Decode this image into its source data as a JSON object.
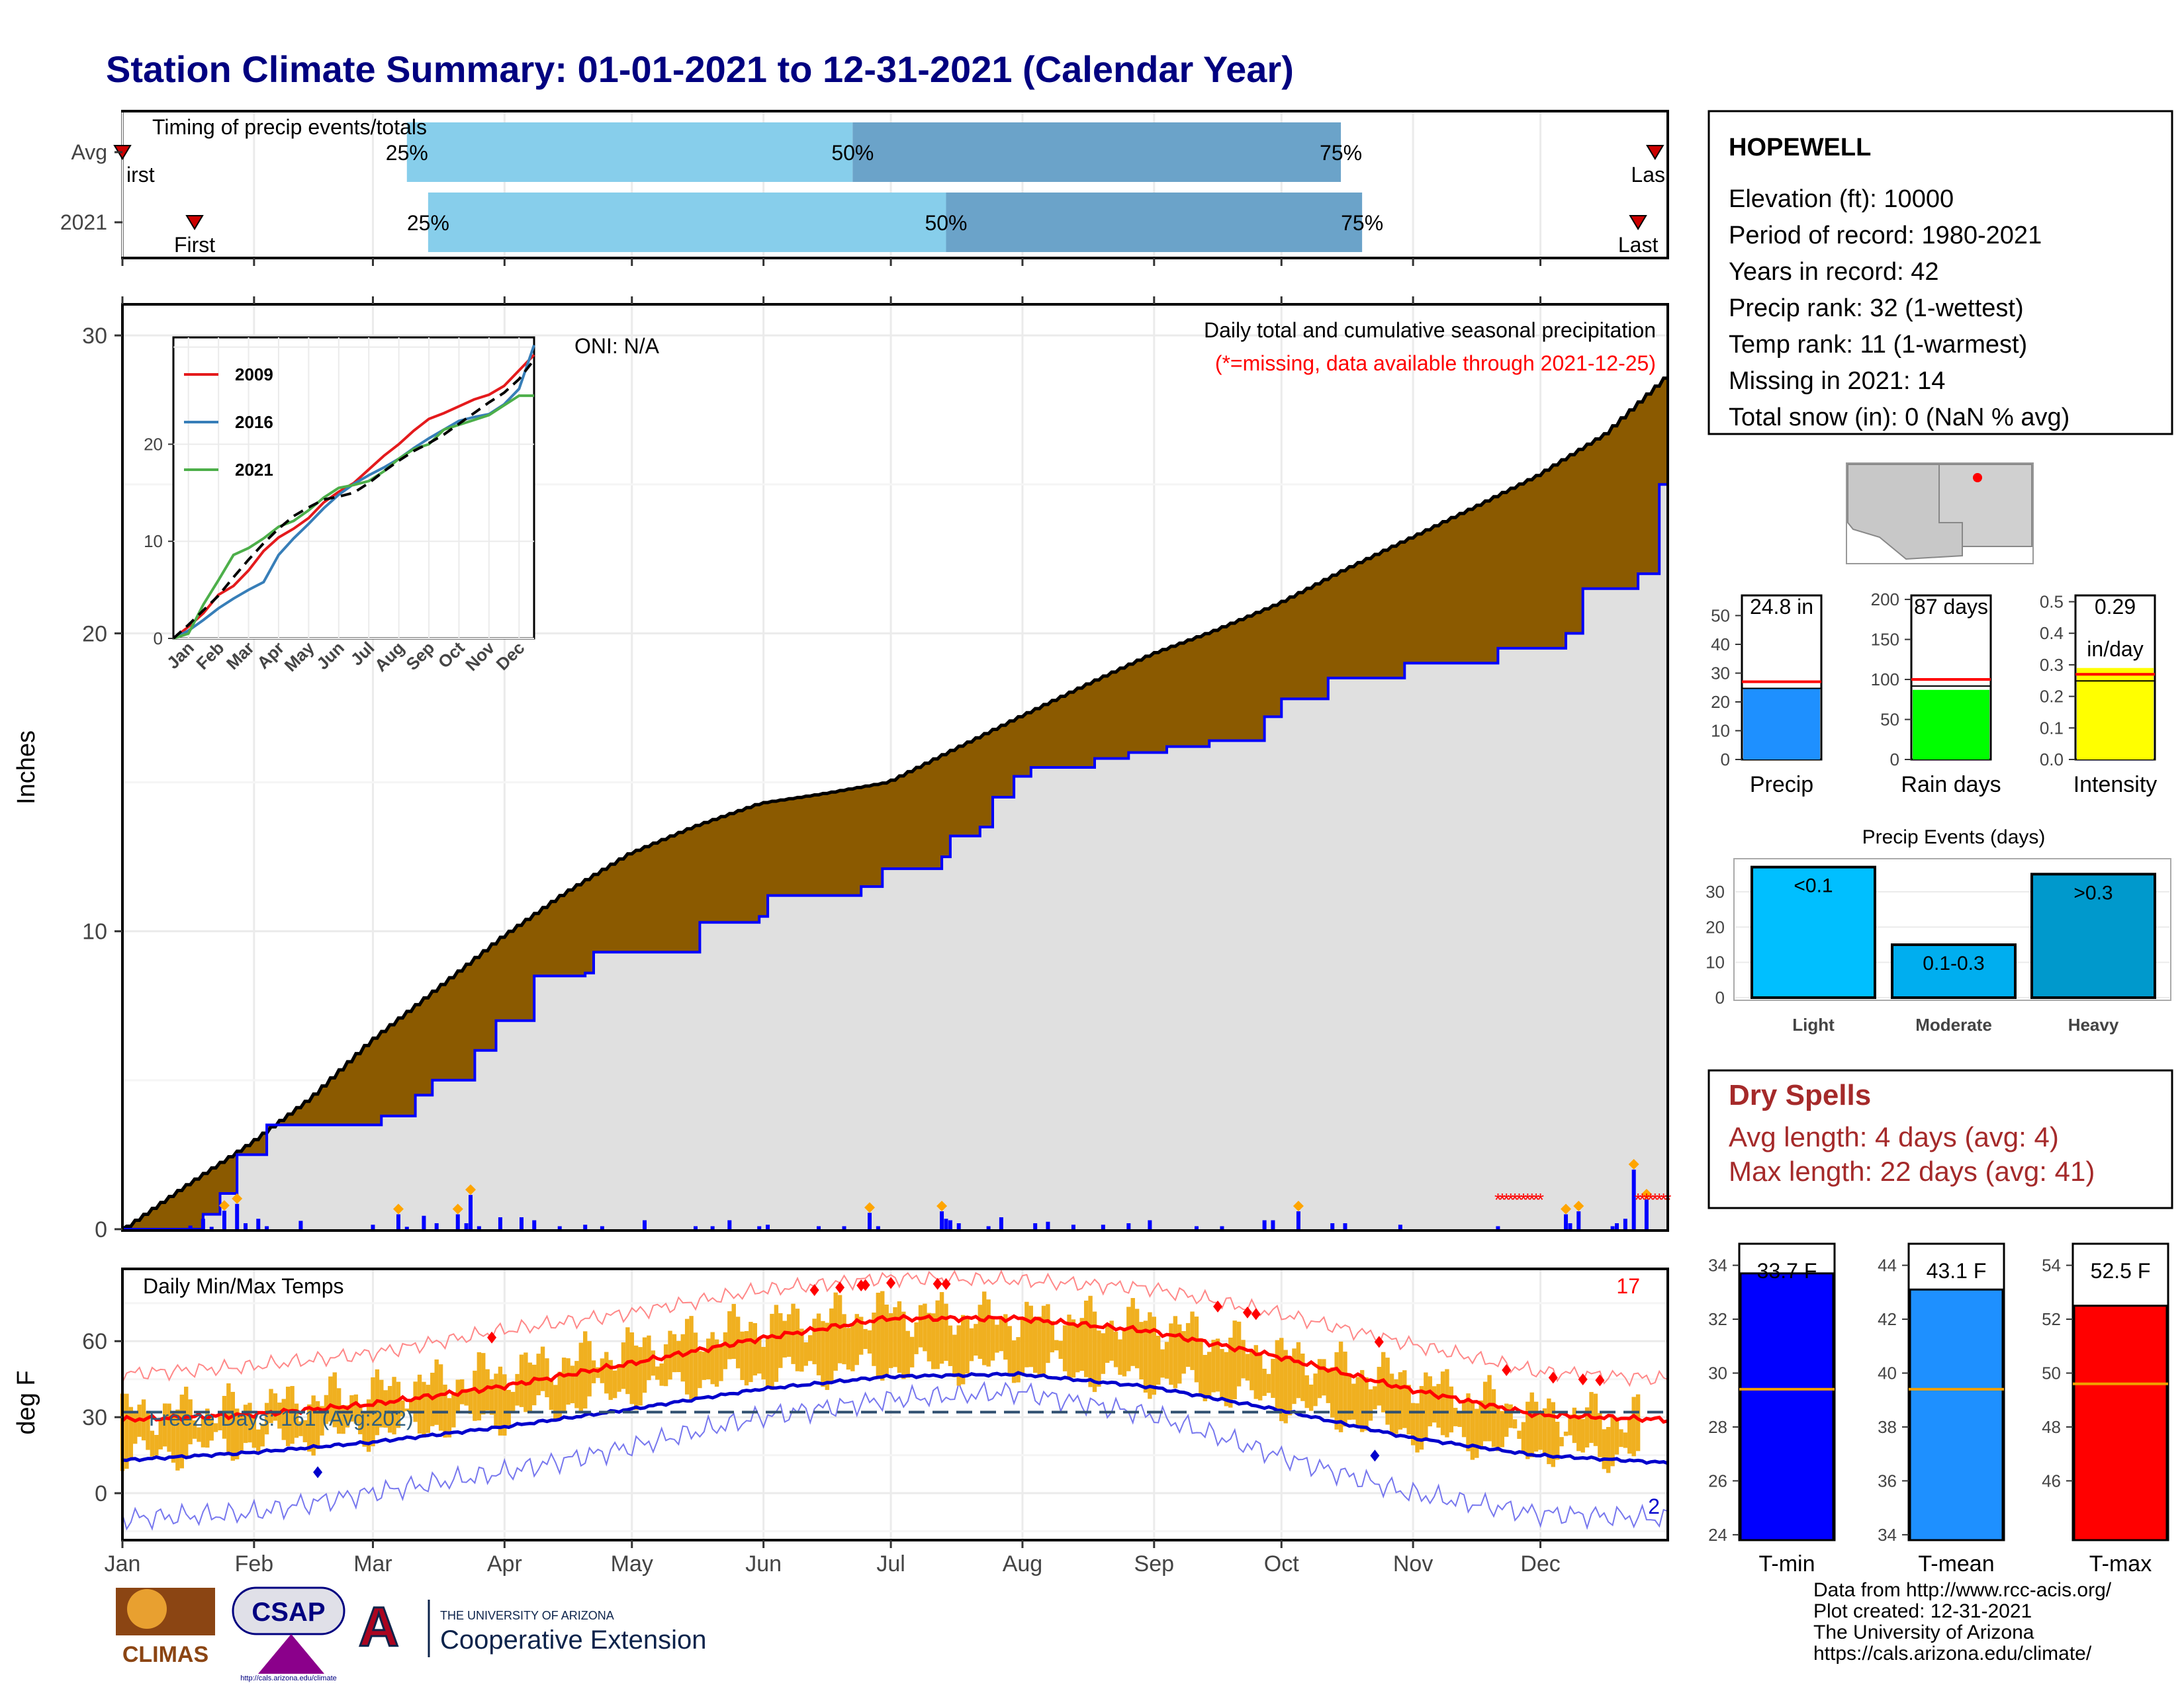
{
  "title": "Station Climate Summary: 01-01-2021 to 12-31-2021 (Calendar Year)",
  "colors": {
    "light_blue": "#87CEEB",
    "mid_blue": "#6BA3C9",
    "accum_fill": "#8B5A00",
    "precip_bar": "#0000FF",
    "cum_fill": "#E0E0E0",
    "tmax": "#FF0000",
    "tmin": "#0000CC",
    "range_bar": "#F0B020",
    "precip_box": "#1E90FF",
    "raindays_box": "#00FF00",
    "intensity_box": "#FFFF00",
    "light_events": "#00BFFF",
    "moderate_events": "#00AEEF",
    "heavy_events": "#0099CC",
    "tmin_box": "#0000FF",
    "tmean_box": "#1E90FF",
    "tmax_box": "#FF0000",
    "avg_line": "#F0A000",
    "dry_spell_text": "#A52A2A",
    "title": "#000080"
  },
  "chart_data": [
    {
      "type": "bar",
      "panel": "timing",
      "title": "Timing of precip events/totals",
      "categories": [
        "Avg",
        "2021"
      ],
      "x_months": [
        "Jan",
        "Feb",
        "Mar",
        "Apr",
        "May",
        "Jun",
        "Jul",
        "Aug",
        "Sep",
        "Oct",
        "Nov",
        "Dec"
      ],
      "quantiles": {
        "Avg": {
          "first": 1,
          "p25": 68,
          "p50": 173,
          "p75": 288,
          "last": 362
        },
        "2021": {
          "first": 18,
          "p25": 73,
          "p50": 195,
          "p75": 293,
          "last": 358
        }
      },
      "labels": {
        "p25": "25%",
        "p50": "50%",
        "p75": "75%",
        "first": "First",
        "last": "Last",
        "first_clipped": "irst",
        "last_clipped": "Las"
      }
    },
    {
      "type": "area",
      "panel": "precipitation",
      "title": "Daily total and cumulative seasonal precipitation",
      "subtitle": "(*=missing, data available through 2021-12-25)",
      "oni": "ONI: N/A",
      "ylabel": "Inches",
      "ylim": [
        0,
        31
      ],
      "yticks": [
        "0",
        "10",
        "20",
        "30"
      ],
      "avg_cumulative": {
        "day": [
          1,
          15,
          31,
          45,
          59,
          75,
          90,
          105,
          120,
          135,
          151,
          165,
          181,
          195,
          212,
          228,
          243,
          258,
          273,
          288,
          304,
          320,
          334,
          350,
          365
        ],
        "inches": [
          0,
          1.4,
          2.9,
          4.4,
          6.3,
          8.1,
          9.8,
          11.3,
          12.6,
          13.5,
          14.3,
          14.6,
          15.0,
          16.0,
          17.2,
          18.3,
          19.3,
          20.1,
          21.0,
          22.1,
          23.2,
          24.3,
          25.3,
          26.7,
          28.7
        ]
      },
      "cumulative_2021": {
        "day": [
          1,
          20,
          24,
          28,
          35,
          56,
          62,
          70,
          74,
          84,
          89,
          98,
          110,
          112,
          137,
          151,
          153,
          175,
          180,
          194,
          196,
          203,
          206,
          211,
          215,
          230,
          238,
          247,
          257,
          270,
          274,
          285,
          303,
          325,
          341,
          345,
          358,
          363,
          365
        ],
        "inches": [
          0,
          0.5,
          1.2,
          2.5,
          3.5,
          3.5,
          3.8,
          4.5,
          5.0,
          6.0,
          7.0,
          8.5,
          8.6,
          9.3,
          10.3,
          10.5,
          11.2,
          11.5,
          12.1,
          12.5,
          13.2,
          13.5,
          14.5,
          15.2,
          15.5,
          15.8,
          16.0,
          16.2,
          16.4,
          17.2,
          17.8,
          18.5,
          19.0,
          19.5,
          20.0,
          21.5,
          22.0,
          25.0,
          25.0
        ]
      },
      "daily_precip": {
        "day": [
          17,
          20,
          22,
          25,
          28,
          30,
          33,
          35,
          43,
          60,
          66,
          68,
          72,
          75,
          80,
          82,
          83,
          85,
          90,
          95,
          98,
          104,
          110,
          114,
          124,
          136,
          140,
          144,
          151,
          153,
          165,
          171,
          177,
          179,
          194,
          195,
          196,
          198,
          205,
          208,
          216,
          219,
          225,
          232,
          238,
          243,
          254,
          260,
          270,
          272,
          278,
          286,
          289,
          302,
          325,
          341,
          342,
          344,
          352,
          353,
          355,
          357,
          360
        ],
        "inches": [
          0.12,
          0.35,
          0.08,
          0.62,
          0.85,
          0.2,
          0.35,
          0.1,
          0.28,
          0.15,
          0.5,
          0.08,
          0.45,
          0.2,
          0.5,
          0.2,
          1.15,
          0.1,
          0.4,
          0.4,
          0.3,
          0.1,
          0.15,
          0.1,
          0.3,
          0.1,
          0.1,
          0.3,
          0.1,
          0.15,
          0.1,
          0.1,
          0.55,
          0.1,
          0.6,
          0.35,
          0.3,
          0.2,
          0.1,
          0.4,
          0.2,
          0.25,
          0.15,
          0.15,
          0.2,
          0.3,
          0.1,
          0.1,
          0.3,
          0.3,
          0.6,
          0.2,
          0.2,
          0.15,
          0.1,
          0.5,
          0.2,
          0.6,
          0.1,
          0.2,
          0.35,
          2.0,
          1.0
        ]
      },
      "missing_days_range": [
        325,
        335
      ],
      "inset": {
        "type": "line",
        "xticks": [
          "Jan",
          "Feb",
          "Mar",
          "Apr",
          "May",
          "Jun",
          "Jul",
          "Aug",
          "Sep",
          "Oct",
          "Nov",
          "Dec"
        ],
        "ylim": [
          0,
          31
        ],
        "yticks": [
          "0",
          "10",
          "20"
        ],
        "series": [
          {
            "name": "2009",
            "color": "#E41A1C",
            "values": [
              0,
              1.2,
              2.6,
              4.5,
              5.4,
              7.0,
              9.0,
              10.4,
              11.3,
              12.4,
              14.0,
              15.1,
              16.0,
              17.4,
              18.8,
              20.0,
              21.4,
              22.6,
              23.2,
              23.9,
              24.6,
              25.1,
              26.0,
              27.6,
              29.2
            ]
          },
          {
            "name": "2016",
            "color": "#377EB8",
            "values": [
              0,
              0.8,
              1.9,
              3.1,
              4.1,
              5.0,
              5.8,
              8.6,
              10.3,
              11.8,
              13.4,
              14.8,
              15.9,
              16.8,
              17.6,
              18.5,
              19.6,
              20.6,
              21.5,
              22.4,
              22.8,
              23.1,
              24.1,
              25.7,
              30.2
            ]
          },
          {
            "name": "2021",
            "color": "#4DAF4A",
            "values": [
              0,
              0.5,
              3.5,
              6.0,
              8.6,
              9.3,
              10.3,
              11.5,
              12.1,
              13.2,
              14.5,
              15.5,
              15.8,
              16.2,
              17.2,
              18.5,
              19.5,
              20.0,
              21.5,
              22.0,
              22.5,
              23.0,
              24.0,
              25.0,
              25.0
            ]
          }
        ],
        "avg_series": {
          "values": [
            0,
            1.4,
            2.9,
            4.4,
            6.3,
            8.1,
            9.8,
            11.3,
            12.6,
            13.5,
            14.3,
            14.6,
            15.0,
            16.0,
            17.2,
            18.3,
            19.3,
            20.1,
            21.0,
            22.1,
            23.2,
            24.3,
            25.3,
            26.7,
            28.7
          ]
        }
      }
    },
    {
      "type": "line",
      "panel": "temperature",
      "title": "Daily Min/Max Temps",
      "ylabel": "deg F",
      "ylim": [
        -18,
        88
      ],
      "yticks": [
        "0",
        "30",
        "60"
      ],
      "freeze_line": 32,
      "freeze_label": "Freeze Days: 161 (Avg:202)",
      "record_highs_count": "17",
      "record_lows_count": "2",
      "x": [
        1,
        31,
        59,
        90,
        120,
        151,
        181,
        212,
        243,
        273,
        304,
        334,
        365
      ],
      "xticks": [
        "Jan",
        "Feb",
        "Mar",
        "Apr",
        "May",
        "Jun",
        "Jul",
        "Aug",
        "Sep",
        "Oct",
        "Nov",
        "Dec"
      ],
      "series": [
        {
          "role": "avg_max",
          "values": [
            29,
            31,
            35,
            42,
            51,
            61,
            69,
            69,
            64,
            54,
            41,
            31,
            29
          ]
        },
        {
          "role": "avg_min",
          "values": [
            13,
            16,
            20,
            26,
            33,
            41,
            46,
            47,
            42,
            33,
            22,
            15,
            12
          ]
        },
        {
          "role": "record_max",
          "values": [
            47,
            50,
            55,
            64,
            71,
            80,
            85,
            84,
            81,
            71,
            59,
            48,
            45
          ]
        },
        {
          "role": "record_min",
          "values": [
            -10,
            -8,
            0,
            8,
            18,
            30,
            37,
            40,
            31,
            15,
            0,
            -8,
            -10
          ]
        },
        {
          "role": "obs_max",
          "values": [
            32,
            34,
            40,
            48,
            57,
            67,
            72,
            69,
            68,
            55,
            45,
            32,
            30
          ]
        },
        {
          "role": "obs_min",
          "values": [
            14,
            20,
            24,
            30,
            40,
            47,
            50,
            50,
            45,
            36,
            24,
            17,
            15
          ]
        }
      ]
    },
    {
      "type": "bar",
      "panel": "summary_boxes",
      "items": [
        {
          "label": "Precip",
          "value": 24.8,
          "avg": 27,
          "value_text": "24.8 in",
          "ylim": [
            0,
            57
          ],
          "yticks": [
            "0",
            "10",
            "20",
            "30",
            "40",
            "50"
          ]
        },
        {
          "label": "Rain days",
          "value": 87,
          "avg": 100,
          "value_text": "87 days",
          "ylim": [
            0,
            205
          ],
          "yticks": [
            "0",
            "50",
            "100",
            "150",
            "200"
          ]
        },
        {
          "label": "Intensity",
          "value": 0.29,
          "avg": 0.27,
          "value_text": "0.29",
          "value_text2": "in/day",
          "ylim": [
            0,
            0.52
          ],
          "yticks": [
            "0.0",
            "0.1",
            "0.2",
            "0.3",
            "0.4",
            "0.5"
          ]
        }
      ]
    },
    {
      "type": "bar",
      "panel": "precip_events",
      "title": "Precip Events (days)",
      "categories": [
        "Light",
        "Moderate",
        "Heavy"
      ],
      "bar_labels": [
        "<0.1",
        "0.1-0.3",
        ">0.3"
      ],
      "values": [
        37,
        15,
        35
      ],
      "ylim": [
        0,
        39
      ],
      "yticks": [
        "0",
        "10",
        "20",
        "30"
      ]
    },
    {
      "type": "bar",
      "panel": "temp_boxes",
      "items": [
        {
          "label": "T-min",
          "value": 33.7,
          "avg": 29.4,
          "value_text": "33.7 F",
          "ylim": [
            23.8,
            34.8
          ],
          "yticks": [
            "24",
            "26",
            "28",
            "30",
            "32",
            "34"
          ]
        },
        {
          "label": "T-mean",
          "value": 43.1,
          "avg": 39.4,
          "value_text": "43.1 F",
          "ylim": [
            33.8,
            44.8
          ],
          "yticks": [
            "34",
            "36",
            "38",
            "40",
            "42",
            "44"
          ]
        },
        {
          "label": "T-max",
          "value": 52.5,
          "avg": 49.6,
          "value_text": "52.5 F",
          "ylim": [
            43.8,
            54.8
          ],
          "yticks": [
            "46",
            "48",
            "50",
            "52",
            "54"
          ]
        }
      ]
    }
  ],
  "station": {
    "name": "HOPEWELL",
    "lines": [
      "Elevation (ft): 10000",
      "Period of record: 1980-2021",
      "Years in record: 42",
      "Precip rank: 32 (1-wettest)",
      "Temp rank: 11 (1-warmest)",
      "Missing in 2021: 14",
      "Total snow (in): 0 (NaN % avg)"
    ]
  },
  "dry_spells": {
    "title": "Dry Spells",
    "avg_line": "Avg length: 4 days (avg: 4)",
    "max_line": "Max length: 22 days (avg: 41)"
  },
  "logos": {
    "climas": "CLIMAS",
    "csap": "CSAP",
    "csap_url": "http://cals.arizona.edu/climate",
    "ua_line1": "THE UNIVERSITY OF ARIZONA",
    "ua_line2": "Cooperative Extension"
  },
  "credits": [
    "Data from http://www.rcc-acis.org/",
    "Plot created: 12-31-2021",
    "The University of Arizona",
    "https://cals.arizona.edu/climate/"
  ]
}
